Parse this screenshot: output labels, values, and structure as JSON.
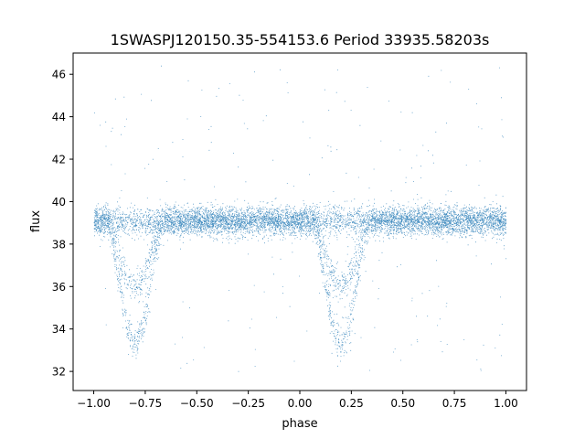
{
  "chart_data": {
    "type": "scatter",
    "title": "1SWASPJ120150.35-554153.6 Period 33935.58203s",
    "xlabel": "phase",
    "ylabel": "flux",
    "xlim": [
      -1.1,
      1.1
    ],
    "ylim": [
      31.1,
      47.0
    ],
    "xticks": [
      -1.0,
      -0.75,
      -0.5,
      -0.25,
      0.0,
      0.25,
      0.5,
      0.75,
      1.0
    ],
    "xtick_labels": [
      "−1.00",
      "−0.75",
      "−0.50",
      "−0.25",
      "0.00",
      "0.25",
      "0.50",
      "0.75",
      "1.00"
    ],
    "yticks": [
      32,
      34,
      36,
      38,
      40,
      42,
      44,
      46
    ],
    "ytick_labels": [
      "32",
      "34",
      "36",
      "38",
      "40",
      "42",
      "44",
      "46"
    ],
    "grid": false,
    "legend": "none",
    "marker_color": "#1f77b4",
    "series": [
      {
        "points_description_x_range": [
          -1.0,
          1.0
        ],
        "baseline_flux": 39.1,
        "baseline_spread": 0.55,
        "dips": [
          {
            "center_phase": -0.8,
            "min_flux_primary": 33.3,
            "min_flux_secondary": 36.0
          },
          {
            "center_phase": 0.2,
            "min_flux_primary": 33.3,
            "min_flux_secondary": 36.0
          }
        ]
      }
    ]
  }
}
